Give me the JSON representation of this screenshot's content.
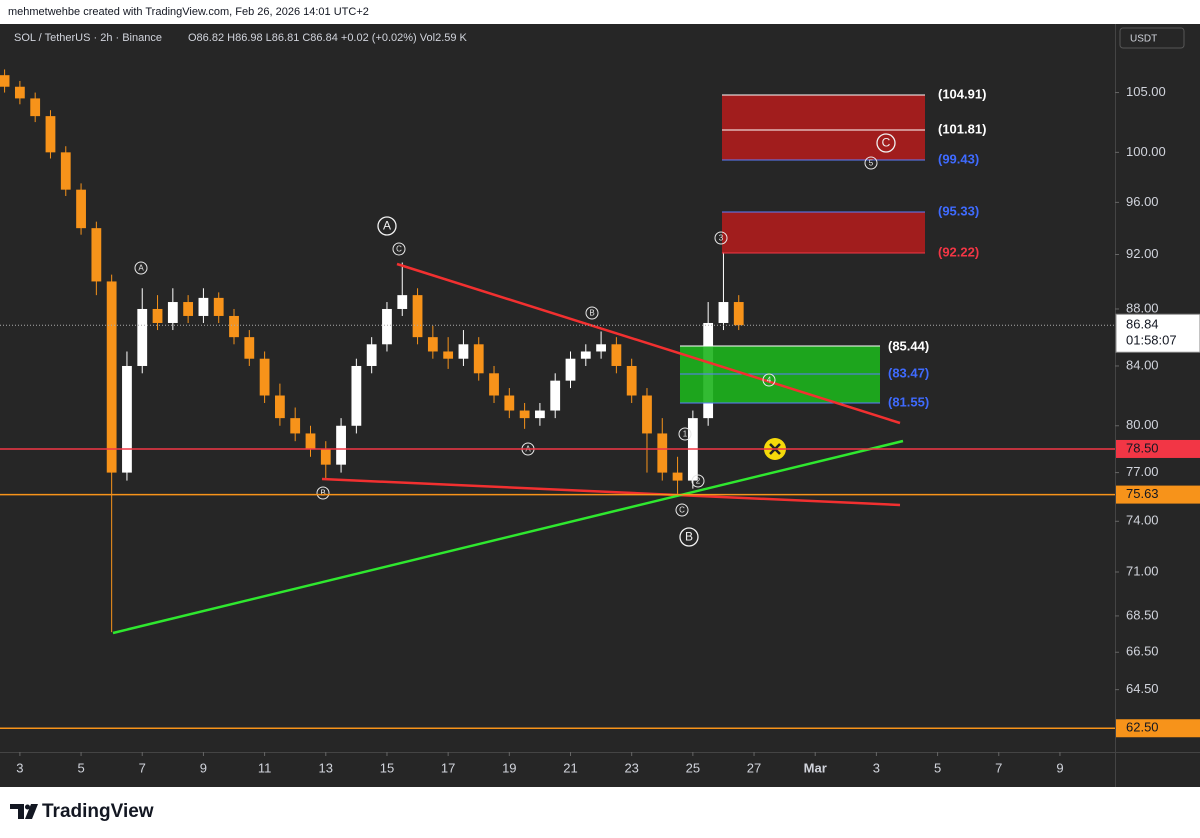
{
  "header": {
    "credit": "mehmetwehbe created with TradingView.com, Feb 26, 2026 14:01 UTC+2"
  },
  "chart_data": {
    "type": "candlestick",
    "title": "SOL / TetherUS · 2h · Binance",
    "ohlc_label": "O86.82 H86.98 L86.81 C86.84 +0.02 (+0.02%) Vol2.59 K",
    "currency": "USDT",
    "x": [
      2.5,
      3,
      3.5,
      4,
      4.5,
      5,
      5.5,
      6,
      6.5,
      7,
      7.5,
      8,
      8.5,
      9,
      9.5,
      10,
      10.5,
      11,
      11.5,
      12,
      12.5,
      13,
      13.5,
      14,
      14.5,
      15,
      15.5,
      16,
      16.5,
      17,
      17.5,
      18,
      18.5,
      19,
      19.5,
      20,
      20.5,
      21,
      21.5,
      22,
      22.5,
      23,
      23.5,
      24,
      24.5,
      25,
      25.5,
      26,
      26.5
    ],
    "open": [
      106.5,
      105.5,
      104.5,
      103,
      100,
      97,
      94,
      90,
      77,
      84,
      88,
      87,
      88.5,
      87.5,
      88.8,
      87.5,
      86,
      84.5,
      82,
      80.5,
      79.5,
      78.5,
      77.5,
      80,
      84,
      85.5,
      88,
      89,
      86,
      85,
      84.5,
      85.5,
      83.5,
      82,
      81,
      80.5,
      81,
      83,
      84.5,
      85,
      85.5,
      84,
      82,
      79.5,
      77,
      76.5,
      80.5,
      87,
      88.5
    ],
    "high": [
      107,
      106,
      105,
      103.5,
      100.5,
      97.5,
      94.5,
      90.5,
      85,
      89.5,
      89,
      89.5,
      89,
      89.5,
      89.2,
      88,
      86.5,
      85,
      82.8,
      81.2,
      80,
      79,
      80.5,
      84.5,
      86,
      88.5,
      91.4,
      89.5,
      86.8,
      86,
      86.5,
      86,
      84,
      82.5,
      81.5,
      81.5,
      83.5,
      85,
      85.5,
      86.4,
      86,
      84.5,
      82.5,
      80.5,
      78,
      81,
      88.5,
      92.2,
      89
    ],
    "low": [
      105,
      104,
      102.5,
      99.5,
      96.5,
      93.5,
      89,
      67.6,
      76.5,
      83.5,
      86.5,
      86.5,
      87,
      87,
      87,
      85.5,
      84,
      81.5,
      80,
      79,
      78,
      76.6,
      77,
      79.5,
      83.5,
      85,
      87.5,
      85.5,
      84.5,
      83.8,
      84,
      83,
      81.5,
      80.5,
      79.8,
      80,
      80.5,
      82.5,
      84,
      84.5,
      83.5,
      81.5,
      77,
      76.5,
      75.6,
      76,
      80,
      86.5,
      86.5
    ],
    "close": [
      105.5,
      104.5,
      103,
      100,
      97,
      94,
      90,
      77,
      84,
      88,
      87,
      88.5,
      87.5,
      88.8,
      87.5,
      86,
      84.5,
      82,
      80.5,
      79.5,
      78.5,
      77.5,
      80,
      84,
      85.5,
      88,
      89,
      86,
      85,
      84.5,
      85.5,
      83.5,
      82,
      81,
      80.5,
      81,
      83,
      84.5,
      85,
      85.5,
      84,
      82,
      79.5,
      77,
      76.5,
      80.5,
      87,
      88.5,
      86.84
    ],
    "up_color": "#ffffff",
    "down_color": "#f7931a",
    "xlim": [
      2.35,
      38.8
    ],
    "xticks": [
      3,
      5,
      7,
      9,
      11,
      13,
      15,
      17,
      19,
      21,
      23,
      25,
      27,
      {
        "value": 29,
        "label": "Mar"
      },
      {
        "value": 31,
        "label": "3"
      },
      {
        "value": 33,
        "label": "5"
      },
      {
        "value": 35,
        "label": "7"
      },
      {
        "value": 37,
        "label": "9"
      }
    ],
    "ylim": [
      61.3,
      110.5
    ],
    "log_scale": true,
    "yticks": [
      {
        "value": 105,
        "label": "105.00"
      },
      {
        "value": 100,
        "label": "100.00"
      },
      {
        "value": 96,
        "label": "96.00"
      },
      {
        "value": 92,
        "label": "92.00"
      },
      {
        "value": 88,
        "label": "88.00"
      },
      {
        "value": 84,
        "label": "84.00"
      },
      {
        "value": 80,
        "label": "80.00"
      },
      {
        "value": 77,
        "label": "77.00"
      },
      {
        "value": 74,
        "label": "74.00"
      },
      {
        "value": 71,
        "label": "71.00"
      },
      {
        "value": 68.5,
        "label": "68.50"
      },
      {
        "value": 66.5,
        "label": "66.50"
      },
      {
        "value": 64.5,
        "label": "64.50"
      }
    ],
    "price_lines": [
      {
        "value": 78.5,
        "label": "78.50",
        "color": "#f23645"
      },
      {
        "value": 75.63,
        "color": "#f7931a"
      },
      {
        "value": 62.5,
        "label": "62.50",
        "color": "#f7931a"
      }
    ],
    "last_price": {
      "value": 86.84,
      "countdown": "01:58:07"
    },
    "zone_labels": [
      "(104.91)",
      "(101.81)",
      "(99.43)",
      "(95.33)",
      "(92.22)",
      "(85.44)",
      "(83.47)",
      "(81.55)"
    ],
    "wave_labels": [
      "A",
      "C",
      "B",
      "A",
      "B",
      "C",
      "1",
      "2",
      "3",
      "4",
      "5",
      "A",
      "B",
      "C"
    ]
  },
  "footer": {
    "logo": "TradingView"
  }
}
